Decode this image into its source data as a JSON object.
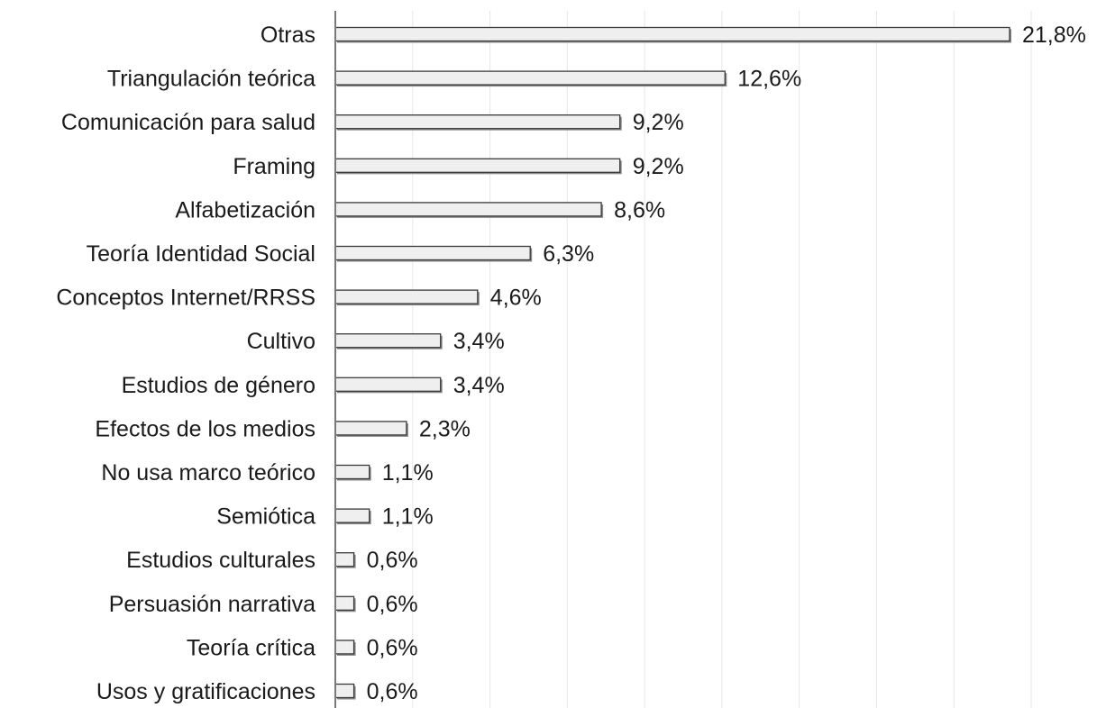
{
  "chart_data": {
    "type": "bar",
    "orientation": "horizontal",
    "categories": [
      "Otras",
      "Triangulación teórica",
      "Comunicación para salud",
      "Framing",
      "Alfabetización",
      "Teoría Identidad Social",
      "Conceptos Internet/RRSS",
      "Cultivo",
      "Estudios de género",
      "Efectos de los medios",
      "No usa marco teórico",
      "Semiótica",
      "Estudios culturales",
      "Persuasión narrativa",
      "Teoría crítica",
      "Usos y gratificaciones"
    ],
    "values": [
      21.8,
      12.6,
      9.2,
      9.2,
      8.6,
      6.3,
      4.6,
      3.4,
      3.4,
      2.3,
      1.1,
      1.1,
      0.6,
      0.6,
      0.6,
      0.6
    ],
    "value_labels": [
      "21,8%",
      "12,6%",
      "9,2%",
      "9,2%",
      "8,6%",
      "6,3%",
      "4,6%",
      "3,4%",
      "3,4%",
      "2,3%",
      "1,1%",
      "1,1%",
      "0,6%",
      "0,6%",
      "0,6%",
      "0,6%"
    ],
    "xlim": [
      0,
      25
    ],
    "grid": true,
    "bar_color": "#efefef",
    "bar_edge_color": "#3a3a3a"
  }
}
